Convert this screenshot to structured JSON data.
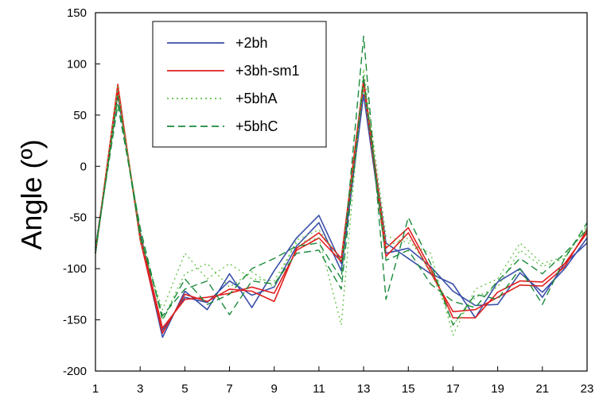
{
  "chart_data": {
    "type": "line",
    "title": "",
    "xlabel": "",
    "ylabel": "Angle (º)",
    "xlim": [
      1,
      23
    ],
    "ylim": [
      -200,
      150
    ],
    "x_ticks": [
      1,
      3,
      5,
      7,
      9,
      11,
      13,
      15,
      17,
      19,
      21,
      23
    ],
    "y_ticks": [
      -200,
      -150,
      -100,
      -50,
      0,
      50,
      100,
      150
    ],
    "grid": false,
    "legend_position": "top-left",
    "x": [
      1,
      2,
      3,
      4,
      5,
      6,
      7,
      8,
      9,
      10,
      11,
      12,
      13,
      14,
      15,
      16,
      17,
      18,
      19,
      20,
      21,
      22,
      23
    ],
    "series": [
      {
        "name": "+2bh",
        "color": "#3a4fa8",
        "dash": "solid",
        "lines": [
          [
            -85,
            75,
            -70,
            -167,
            -122,
            -140,
            -105,
            -138,
            -102,
            -70,
            -48,
            -95,
            80,
            -75,
            -90,
            -105,
            -115,
            -148,
            -113,
            -100,
            -128,
            -95,
            -75
          ],
          [
            -80,
            70,
            -65,
            -160,
            -128,
            -133,
            -112,
            -126,
            -118,
            -78,
            -55,
            -102,
            70,
            -85,
            -80,
            -98,
            -122,
            -136,
            -135,
            -104,
            -123,
            -100,
            -70
          ]
        ]
      },
      {
        "name": "+3bh-sm1",
        "color": "#e02020",
        "dash": "solid",
        "lines": [
          [
            -85,
            80,
            -72,
            -163,
            -125,
            -132,
            -120,
            -122,
            -132,
            -80,
            -65,
            -90,
            85,
            -80,
            -60,
            -100,
            -148,
            -148,
            -123,
            -112,
            -113,
            -95,
            -65
          ],
          [
            -82,
            75,
            -68,
            -158,
            -130,
            -128,
            -124,
            -118,
            -124,
            -82,
            -70,
            -93,
            80,
            -88,
            -65,
            -104,
            -142,
            -140,
            -128,
            -116,
            -117,
            -98,
            -62
          ]
        ]
      },
      {
        "name": "+5bhA",
        "color": "#5fc040",
        "dash": "dotted",
        "lines": [
          [
            -85,
            78,
            -72,
            -140,
            -85,
            -110,
            -95,
            -110,
            -112,
            -75,
            -70,
            -155,
            95,
            -68,
            -75,
            -85,
            -165,
            -120,
            -110,
            -75,
            -95,
            -88,
            -60
          ],
          [
            -80,
            70,
            -62,
            -150,
            -105,
            -95,
            -118,
            -103,
            -118,
            -72,
            -62,
            -92,
            78,
            -78,
            -70,
            -102,
            -155,
            -128,
            -118,
            -82,
            -98,
            -90,
            -58
          ]
        ]
      },
      {
        "name": "+5bhC",
        "color": "#1a8a3a",
        "dash": "dashed",
        "lines": [
          [
            -80,
            60,
            -60,
            -150,
            -110,
            -135,
            -125,
            -100,
            -90,
            -78,
            -75,
            -110,
            127,
            -130,
            -50,
            -95,
            -155,
            -125,
            -130,
            -100,
            -135,
            -90,
            -55
          ],
          [
            -85,
            68,
            -68,
            -146,
            -120,
            -112,
            -145,
            -112,
            -115,
            -85,
            -82,
            -120,
            88,
            -92,
            -82,
            -115,
            -132,
            -138,
            -112,
            -90,
            -105,
            -85,
            -62
          ]
        ]
      }
    ]
  }
}
